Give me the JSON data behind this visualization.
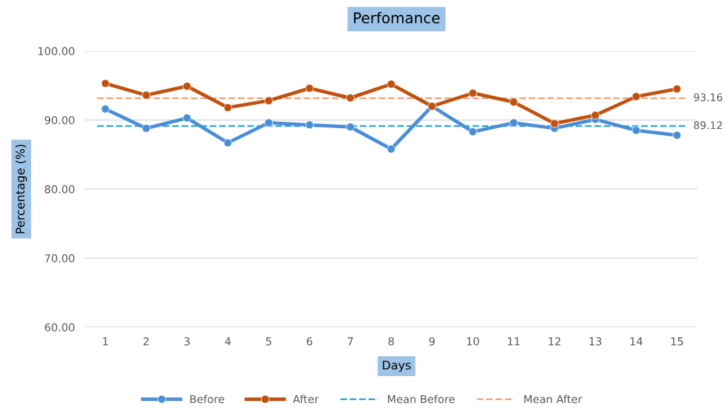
{
  "chart_data": {
    "type": "line",
    "title": "Perfomance",
    "xlabel": "Days",
    "ylabel": "Percentage (%)",
    "categories": [
      "1",
      "2",
      "3",
      "4",
      "5",
      "6",
      "7",
      "8",
      "9",
      "10",
      "11",
      "12",
      "13",
      "14",
      "15"
    ],
    "series": [
      {
        "name": "Before",
        "color": "#4a8fd6",
        "values": [
          91.6,
          88.8,
          90.3,
          86.7,
          89.6,
          89.3,
          89.0,
          85.8,
          92.0,
          88.3,
          89.6,
          88.8,
          90.1,
          88.5,
          87.8
        ]
      },
      {
        "name": "After",
        "color": "#c0510f",
        "values": [
          95.3,
          93.6,
          94.9,
          91.8,
          92.8,
          94.6,
          93.2,
          95.2,
          92.0,
          93.9,
          92.6,
          89.5,
          90.7,
          93.4,
          94.5
        ]
      }
    ],
    "ref_lines": [
      {
        "axis": "y",
        "value": 89.12,
        "label": "Mean Before",
        "color": "#38a6d9",
        "line_style": "dashed"
      },
      {
        "axis": "y",
        "value": 93.16,
        "label": "Mean After",
        "color": "#f2a77e",
        "line_style": "dashed"
      }
    ],
    "annotations": [
      {
        "text": "89.12",
        "x": "15",
        "y": 89.12
      },
      {
        "text": "93.16",
        "x": "15",
        "y": 93.16
      }
    ],
    "ylim": [
      60,
      100
    ],
    "yticks": [
      {
        "value": 60,
        "label": "60.00"
      },
      {
        "value": 70,
        "label": "70.00"
      },
      {
        "value": 80,
        "label": "80.00"
      },
      {
        "value": 90,
        "label": "90.00"
      },
      {
        "value": 100,
        "label": "100.00"
      }
    ],
    "grid": "y",
    "legend": "bottom",
    "marker": "circle",
    "line_style": "solid"
  }
}
